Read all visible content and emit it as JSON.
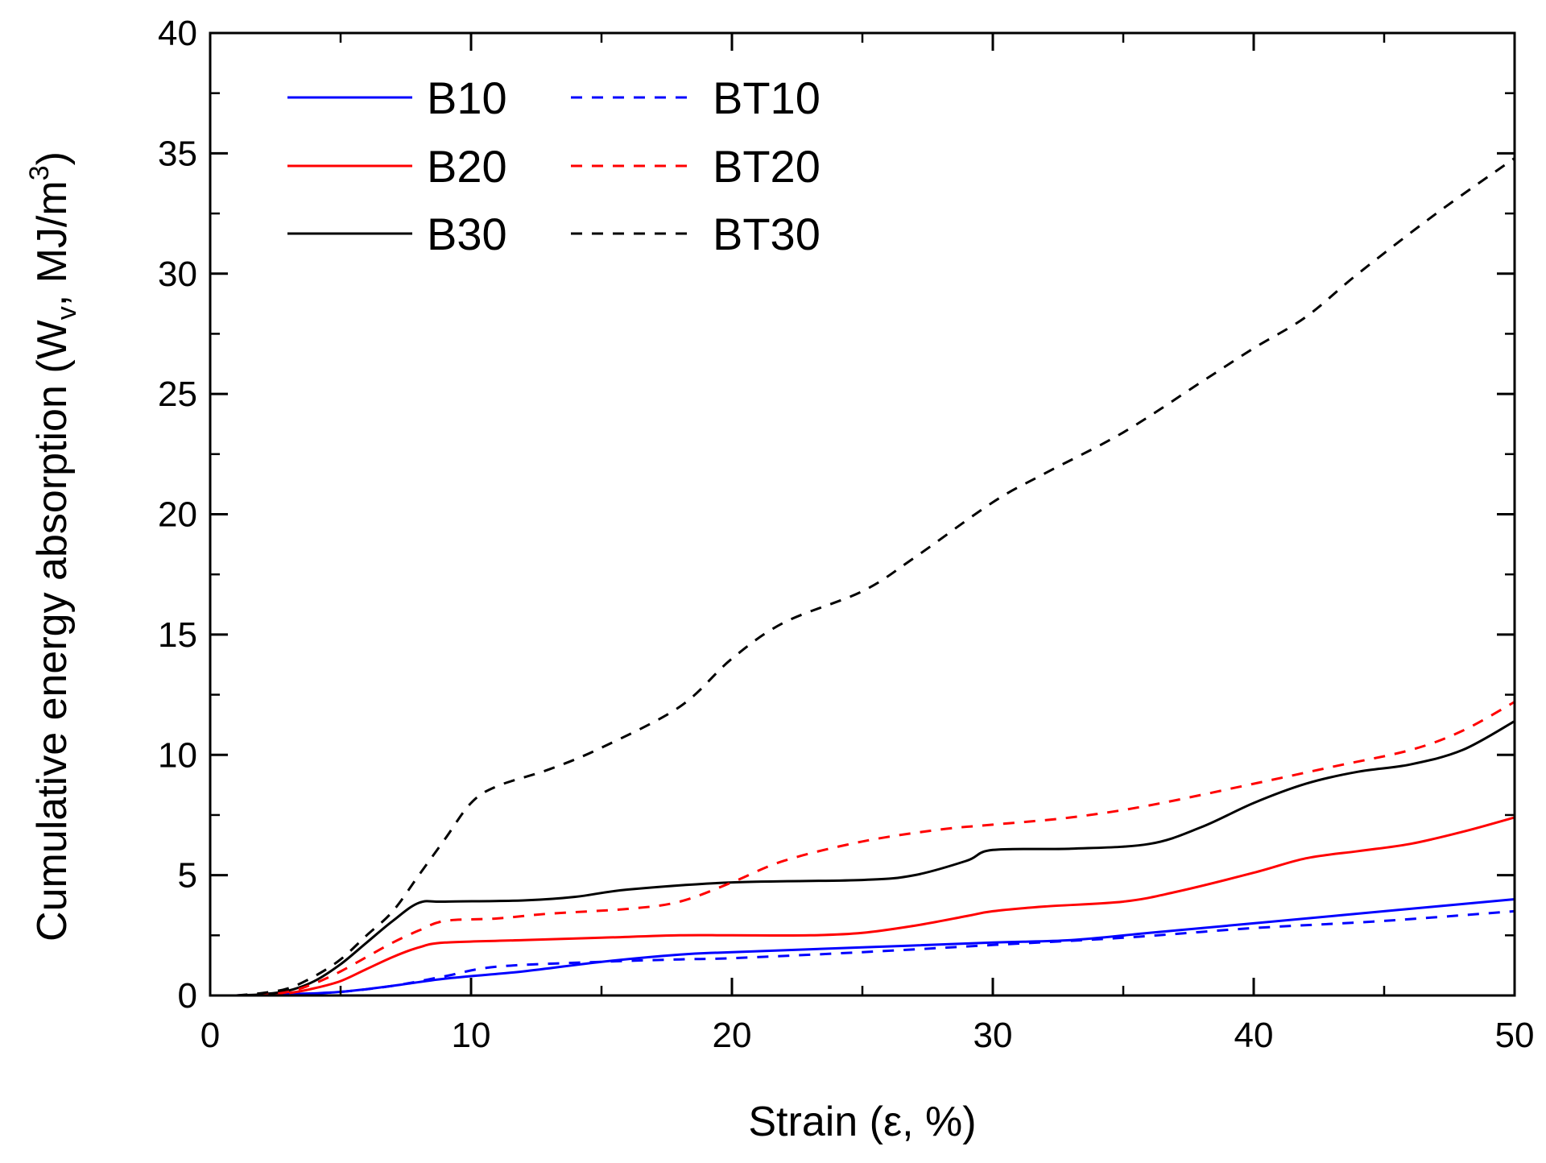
{
  "chart_data": {
    "type": "line",
    "title": "",
    "xlabel": "Strain (ε, %)",
    "ylabel_parts": [
      "Cumulative energy absorption (W",
      "v",
      ", MJ/m",
      "3",
      ")"
    ],
    "xlim": [
      0,
      50
    ],
    "ylim": [
      0,
      40
    ],
    "x_major_ticks": [
      0,
      10,
      20,
      30,
      40,
      50
    ],
    "y_major_ticks": [
      0,
      5,
      10,
      15,
      20,
      25,
      30,
      35,
      40
    ],
    "x_minor_step": 5,
    "y_minor_step": 2.5,
    "grid": false,
    "legend_position": "top-left",
    "series": [
      {
        "name": "B10",
        "color": "#0000ff",
        "dash": "solid",
        "x": [
          1,
          2,
          3,
          5,
          7,
          9,
          12,
          15,
          18,
          20,
          25,
          30,
          33,
          36,
          40,
          45,
          50
        ],
        "y": [
          0,
          0.02,
          0.05,
          0.15,
          0.4,
          0.7,
          1.0,
          1.4,
          1.7,
          1.8,
          2.0,
          2.2,
          2.3,
          2.6,
          3.0,
          3.5,
          4.0
        ]
      },
      {
        "name": "B20",
        "color": "#ff0000",
        "dash": "solid",
        "x": [
          1,
          2,
          3,
          4,
          5,
          6,
          7,
          8,
          9,
          12,
          15,
          18,
          20,
          23,
          25,
          27,
          29,
          30,
          32,
          35,
          37,
          40,
          42,
          44,
          46,
          48,
          50
        ],
        "y": [
          0,
          0.03,
          0.1,
          0.3,
          0.6,
          1.1,
          1.6,
          2.0,
          2.2,
          2.3,
          2.4,
          2.5,
          2.5,
          2.5,
          2.6,
          2.9,
          3.3,
          3.5,
          3.7,
          3.9,
          4.3,
          5.1,
          5.7,
          6.0,
          6.3,
          6.8,
          7.4
        ]
      },
      {
        "name": "B30",
        "color": "#000000",
        "dash": "solid",
        "x": [
          1,
          2,
          3,
          4,
          5,
          6,
          7,
          8,
          9,
          12,
          14,
          16,
          20,
          25,
          27,
          29,
          30,
          33,
          36,
          38,
          40,
          42,
          44,
          46,
          48,
          50
        ],
        "y": [
          0,
          0.05,
          0.2,
          0.6,
          1.3,
          2.2,
          3.1,
          3.85,
          3.9,
          3.95,
          4.1,
          4.4,
          4.7,
          4.8,
          5.0,
          5.6,
          6.05,
          6.1,
          6.3,
          7.0,
          8.0,
          8.8,
          9.3,
          9.6,
          10.2,
          11.4
        ]
      },
      {
        "name": "BT10",
        "color": "#0000ff",
        "dash": "dashed",
        "x": [
          1,
          2,
          3,
          5,
          7,
          9,
          11,
          15,
          18,
          20,
          25,
          30,
          35,
          40,
          45,
          50
        ],
        "y": [
          0,
          0.02,
          0.05,
          0.15,
          0.4,
          0.8,
          1.2,
          1.4,
          1.5,
          1.55,
          1.8,
          2.1,
          2.4,
          2.8,
          3.1,
          3.5
        ]
      },
      {
        "name": "BT20",
        "color": "#ff0000",
        "dash": "dashed",
        "x": [
          1,
          2,
          3,
          4,
          5,
          6,
          7,
          8,
          9,
          11,
          13,
          16,
          18,
          20,
          22,
          25,
          28,
          30,
          33,
          36,
          40,
          43,
          46,
          48,
          50
        ],
        "y": [
          0,
          0.03,
          0.15,
          0.5,
          1.0,
          1.6,
          2.2,
          2.7,
          3.1,
          3.2,
          3.4,
          3.6,
          3.9,
          4.7,
          5.6,
          6.4,
          6.9,
          7.1,
          7.4,
          7.9,
          8.8,
          9.5,
          10.2,
          11.0,
          12.2
        ]
      },
      {
        "name": "BT30",
        "color": "#000000",
        "dash": "dashed",
        "x": [
          1,
          2,
          3,
          4,
          5,
          6,
          7,
          8,
          9,
          10,
          11,
          13,
          15,
          18,
          20,
          22,
          25,
          27,
          30,
          32,
          35,
          38,
          40,
          42,
          44,
          47,
          50
        ],
        "y": [
          0,
          0.1,
          0.3,
          0.8,
          1.5,
          2.5,
          3.5,
          5.0,
          6.5,
          8.0,
          8.7,
          9.4,
          10.3,
          12.0,
          14.0,
          15.5,
          16.8,
          18.2,
          20.5,
          21.7,
          23.4,
          25.5,
          26.9,
          28.2,
          30.0,
          32.5,
          34.8
        ]
      }
    ]
  }
}
